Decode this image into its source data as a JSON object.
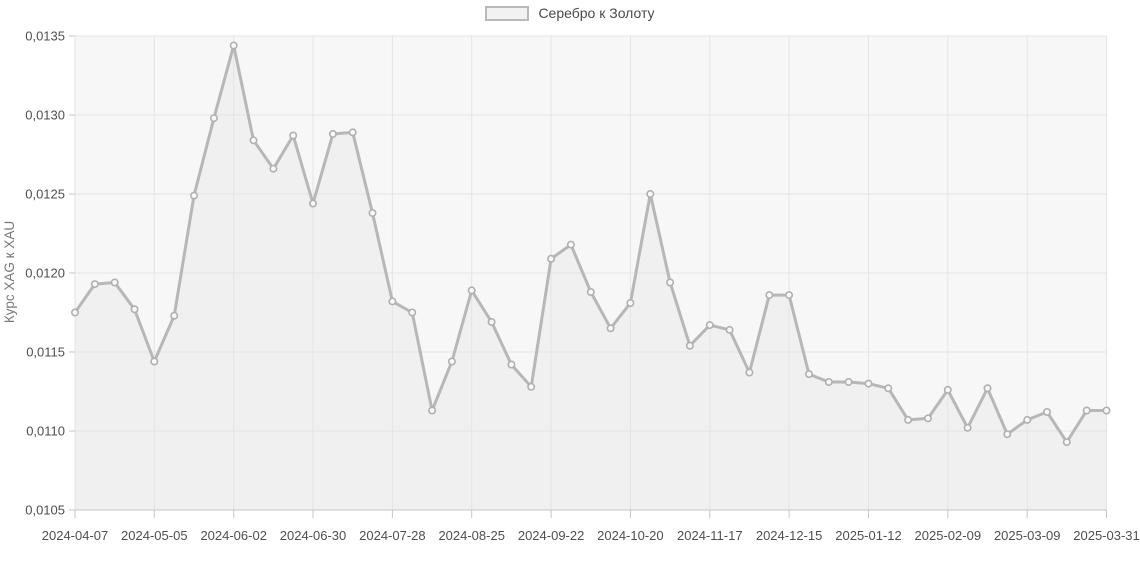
{
  "legend": {
    "position": "top-center"
  },
  "chart_data": {
    "type": "area",
    "series_name": "Серебро к Золоту",
    "ylabel": "Курс XAG к XAU",
    "xlabel": "",
    "grid": true,
    "legend_position": "top-center",
    "ylim": [
      0.0105,
      0.0135
    ],
    "y_tick_labels": [
      "0,0135",
      "0,0130",
      "0,0125",
      "0,0120",
      "0,0115",
      "0,0110",
      "0,0105"
    ],
    "y_tick_values": [
      0.0135,
      0.013,
      0.0125,
      0.012,
      0.0115,
      0.011,
      0.0105
    ],
    "x_tick_labels": [
      "2024-04-07",
      "2024-05-05",
      "2024-06-02",
      "2024-06-30",
      "2024-07-28",
      "2024-08-25",
      "2024-09-22",
      "2024-10-20",
      "2024-11-17",
      "2024-12-15",
      "2025-01-12",
      "2025-02-09",
      "2025-03-09",
      "2025-03-31"
    ],
    "x_tick_indices": [
      0,
      4,
      8,
      12,
      16,
      20,
      24,
      28,
      32,
      36,
      40,
      44,
      48,
      52
    ],
    "values": [
      0.01175,
      0.01193,
      0.01194,
      0.01177,
      0.01144,
      0.01173,
      0.01249,
      0.01298,
      0.01344,
      0.01284,
      0.01266,
      0.01287,
      0.01244,
      0.01288,
      0.01289,
      0.01238,
      0.01182,
      0.01175,
      0.01113,
      0.01144,
      0.01189,
      0.01169,
      0.01142,
      0.01128,
      0.01209,
      0.01218,
      0.01188,
      0.01165,
      0.01181,
      0.0125,
      0.01194,
      0.01154,
      0.01167,
      0.01164,
      0.01137,
      0.01186,
      0.01186,
      0.01136,
      0.01131,
      0.01131,
      0.0113,
      0.01127,
      0.01107,
      0.01108,
      0.01126,
      0.01102,
      0.01127,
      0.01098,
      0.01107,
      0.01112,
      0.01093,
      0.01113,
      0.01113
    ],
    "colors": {
      "line": "#b7b7b7",
      "area_fill": "#f0f0f0",
      "plot_bg": "#f7f7f7",
      "grid": "#e4e4e4",
      "axis": "#c6c6c6",
      "marker_fill": "#f9f9f9",
      "marker_stroke": "#b0b0b0",
      "tick_text": "#4f4f4f",
      "axis_title_text": "#777777"
    }
  }
}
